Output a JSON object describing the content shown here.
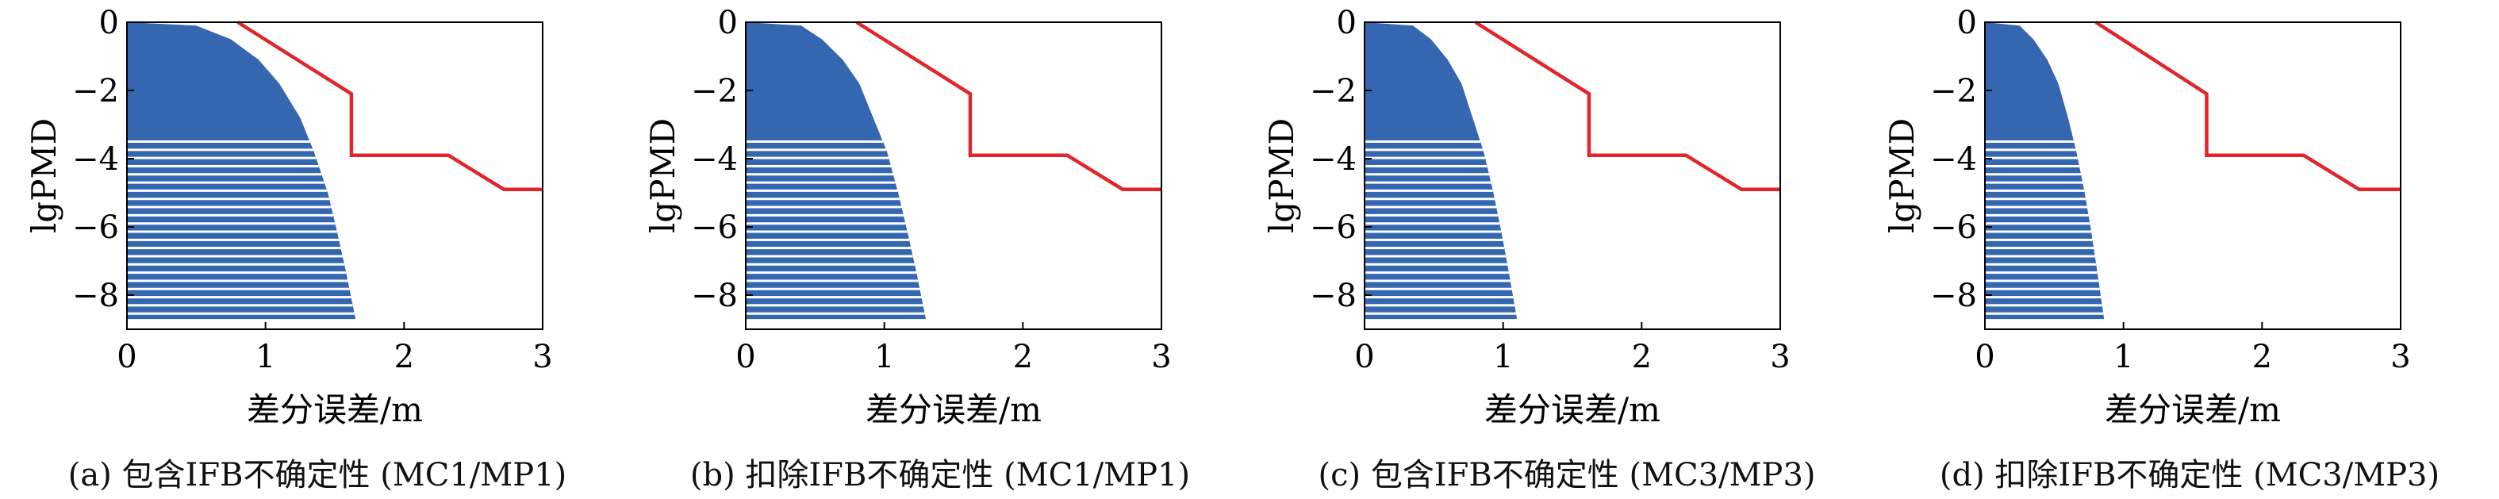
{
  "panels": [
    {
      "caption": "(a) 包含IFB不确定性 (MC1/MP1)"
    },
    {
      "caption": "(b) 扣除IFB不确定性 (MC1/MP1)"
    },
    {
      "caption": "(c) 包含IFB不确定性 (MC3/MP3)"
    },
    {
      "caption": "(d) 扣除IFB不确定性 (MC3/MP3)"
    }
  ],
  "colors": {
    "envelope": "#3567b0",
    "threshold": "#e0262b",
    "axis": "#000000"
  },
  "chart_data": [
    {
      "type": "line",
      "caption": "(a) 包含IFB不确定性 (MC1/MP1)",
      "xlabel": "差分误差/m",
      "ylabel": "lgPMD",
      "xlim": [
        0,
        3
      ],
      "ylim": [
        -9,
        0
      ],
      "xticks": [
        0,
        1,
        2,
        3
      ],
      "yticks": [
        0,
        -2,
        -4,
        -6,
        -8
      ],
      "grid": false,
      "series": [
        {
          "role": "envelope",
          "x": [
            0,
            0.5,
            0.75,
            0.95,
            1.1,
            1.25,
            1.35,
            1.45,
            1.52,
            1.58,
            1.65
          ],
          "y": [
            0,
            -0.1,
            -0.5,
            -1.1,
            -1.8,
            -2.8,
            -3.8,
            -5.0,
            -6.2,
            -7.3,
            -8.7
          ]
        },
        {
          "role": "threshold",
          "x": [
            0.8,
            1.62,
            1.62,
            2.32,
            2.72,
            3.0
          ],
          "y": [
            0,
            -2.1,
            -3.9,
            -3.9,
            -4.9,
            -4.9
          ]
        }
      ]
    },
    {
      "type": "line",
      "caption": "(b) 扣除IFB不确定性 (MC1/MP1)",
      "xlabel": "差分误差/m",
      "ylabel": "lgPMD",
      "xlim": [
        0,
        3
      ],
      "ylim": [
        -9,
        0
      ],
      "xticks": [
        0,
        1,
        2,
        3
      ],
      "yticks": [
        0,
        -2,
        -4,
        -6,
        -8
      ],
      "grid": false,
      "series": [
        {
          "role": "envelope",
          "x": [
            0,
            0.4,
            0.55,
            0.7,
            0.82,
            0.92,
            1.02,
            1.1,
            1.17,
            1.23,
            1.3
          ],
          "y": [
            0,
            -0.1,
            -0.5,
            -1.1,
            -1.8,
            -2.8,
            -3.8,
            -5.0,
            -6.2,
            -7.3,
            -8.7
          ]
        },
        {
          "role": "threshold",
          "x": [
            0.8,
            1.62,
            1.62,
            2.32,
            2.72,
            3.0
          ],
          "y": [
            0,
            -2.1,
            -3.9,
            -3.9,
            -4.9,
            -4.9
          ]
        }
      ]
    },
    {
      "type": "line",
      "caption": "(c) 包含IFB不确定性 (MC3/MP3)",
      "xlabel": "差分误差/m",
      "ylabel": "lgPMD",
      "xlim": [
        0,
        3
      ],
      "ylim": [
        -9,
        0
      ],
      "xticks": [
        0,
        1,
        2,
        3
      ],
      "yticks": [
        0,
        -2,
        -4,
        -6,
        -8
      ],
      "grid": false,
      "series": [
        {
          "role": "envelope",
          "x": [
            0,
            0.35,
            0.48,
            0.6,
            0.7,
            0.78,
            0.86,
            0.93,
            0.99,
            1.04,
            1.1
          ],
          "y": [
            0,
            -0.1,
            -0.5,
            -1.1,
            -1.8,
            -2.8,
            -3.8,
            -5.0,
            -6.2,
            -7.3,
            -8.7
          ]
        },
        {
          "role": "threshold",
          "x": [
            0.8,
            1.62,
            1.62,
            2.32,
            2.72,
            3.0
          ],
          "y": [
            0,
            -2.1,
            -3.9,
            -3.9,
            -4.9,
            -4.9
          ]
        }
      ]
    },
    {
      "type": "line",
      "caption": "(d) 扣除IFB不确定性 (MC3/MP3)",
      "xlabel": "差分误差/m",
      "ylabel": "lgPMD",
      "xlim": [
        0,
        3
      ],
      "ylim": [
        -9,
        0
      ],
      "xticks": [
        0,
        1,
        2,
        3
      ],
      "yticks": [
        0,
        -2,
        -4,
        -6,
        -8
      ],
      "grid": false,
      "series": [
        {
          "role": "envelope",
          "x": [
            0,
            0.25,
            0.35,
            0.45,
            0.53,
            0.6,
            0.66,
            0.72,
            0.77,
            0.81,
            0.86
          ],
          "y": [
            0,
            -0.1,
            -0.5,
            -1.1,
            -1.8,
            -2.8,
            -3.8,
            -5.0,
            -6.2,
            -7.3,
            -8.7
          ]
        },
        {
          "role": "threshold",
          "x": [
            0.8,
            1.6,
            1.6,
            2.3,
            2.7,
            3.0
          ],
          "y": [
            0,
            -2.1,
            -3.9,
            -3.9,
            -4.9,
            -4.9
          ]
        }
      ]
    }
  ]
}
